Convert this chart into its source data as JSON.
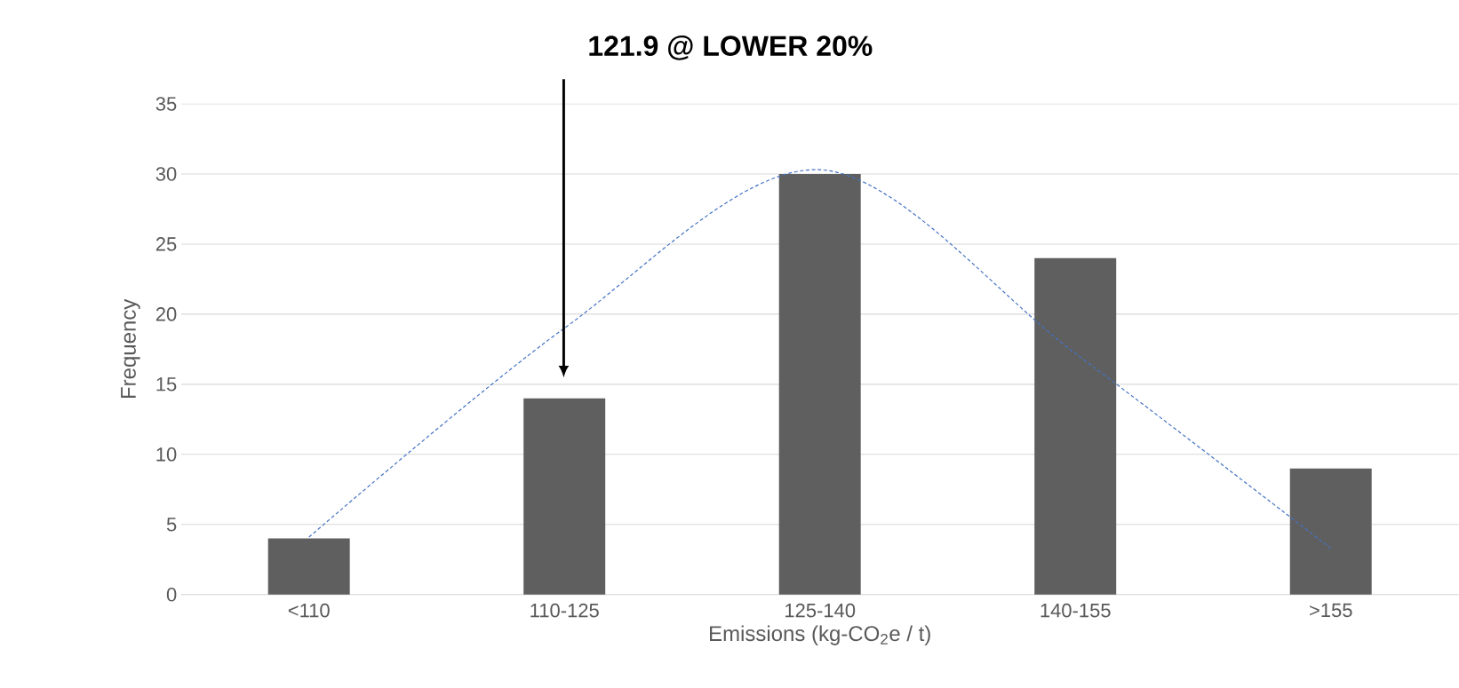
{
  "chart_data": {
    "type": "bar",
    "xlabel": "Emissions (kg-CO$_{2}$e / t)",
    "ylabel": "Frequency",
    "annotations": [
      "121.9 @ LOWER 20%"
    ],
    "categories": [
      "<110",
      "110-125",
      "125-140",
      "140-155",
      ">155"
    ],
    "series": [
      {
        "type": "bar",
        "color": "#5f5f5f",
        "values": [
          4,
          14,
          30,
          24,
          9
        ]
      },
      {
        "type": "line",
        "color": "#4472c4",
        "line_style": "dashed",
        "values": [
          4.1,
          19,
          30.3,
          17.2,
          3.3
        ]
      }
    ],
    "ylim": [
      0,
      35
    ],
    "yticks": [
      0,
      5,
      10,
      15,
      20,
      25,
      30,
      35
    ],
    "grid": "y"
  }
}
